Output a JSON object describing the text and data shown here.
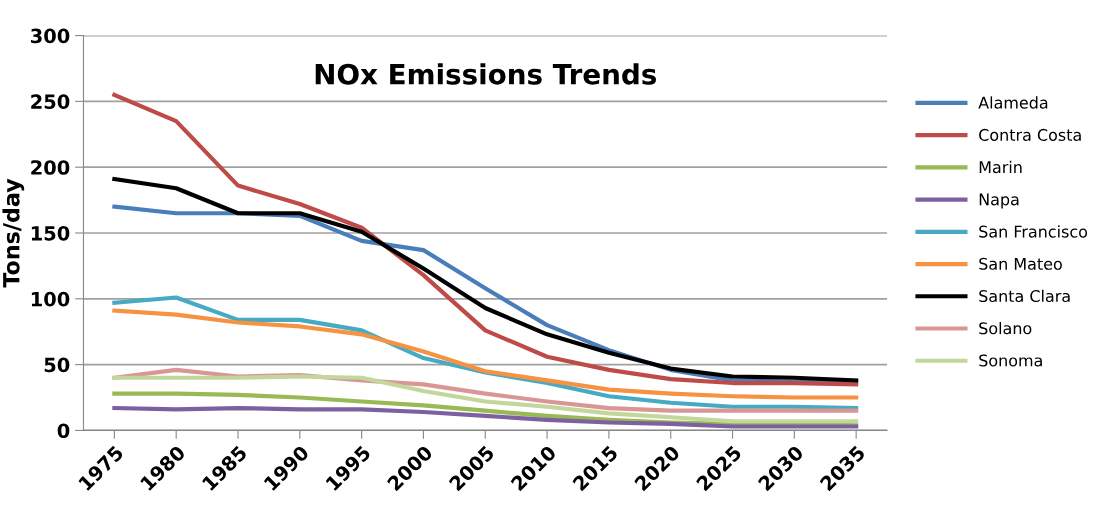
{
  "chart_data": {
    "type": "line",
    "title": "NOx Emissions Trends",
    "ylabel": "Tons/day",
    "categories": [
      "1975",
      "1980",
      "1985",
      "1990",
      "1995",
      "2000",
      "2005",
      "2010",
      "2015",
      "2020",
      "2025",
      "2030",
      "2035"
    ],
    "ylim": [
      0,
      300
    ],
    "yticks": [
      0,
      50,
      100,
      150,
      200,
      250,
      300
    ],
    "grid": "y",
    "legend": "right",
    "line_style": "solid",
    "marker": "none",
    "series": [
      {
        "name": "Alameda",
        "color": "#4a7ebb",
        "values": [
          170,
          165,
          165,
          163,
          144,
          137,
          108,
          80,
          61,
          46,
          38,
          37,
          37
        ]
      },
      {
        "name": "Contra Costa",
        "color": "#be4b48",
        "values": [
          255,
          235,
          186,
          172,
          154,
          118,
          76,
          56,
          46,
          39,
          36,
          36,
          35
        ]
      },
      {
        "name": "Marin",
        "color": "#98b954",
        "values": [
          28,
          28,
          27,
          25,
          22,
          19,
          15,
          11,
          8,
          6,
          5,
          5,
          4
        ]
      },
      {
        "name": "Napa",
        "color": "#7d60a0",
        "values": [
          17,
          16,
          17,
          16,
          16,
          14,
          11,
          8,
          6,
          5,
          3,
          3,
          3
        ]
      },
      {
        "name": "San Francisco",
        "color": "#46aac5",
        "values": [
          97,
          101,
          84,
          84,
          76,
          55,
          44,
          36,
          26,
          21,
          18,
          18,
          17
        ]
      },
      {
        "name": "San Mateo",
        "color": "#f69240",
        "values": [
          91,
          88,
          82,
          79,
          73,
          60,
          45,
          38,
          31,
          28,
          26,
          25,
          25
        ]
      },
      {
        "name": "Santa Clara",
        "color": "#000000",
        "values": [
          191,
          184,
          165,
          165,
          151,
          123,
          93,
          73,
          59,
          47,
          41,
          40,
          38
        ]
      },
      {
        "name": "Solano",
        "color": "#d99694",
        "values": [
          40,
          46,
          41,
          42,
          38,
          35,
          28,
          22,
          17,
          15,
          15,
          15,
          15
        ]
      },
      {
        "name": "Sonoma",
        "color": "#c3d69b",
        "values": [
          40,
          40,
          40,
          41,
          40,
          30,
          22,
          18,
          13,
          10,
          7,
          7,
          7
        ]
      }
    ]
  }
}
